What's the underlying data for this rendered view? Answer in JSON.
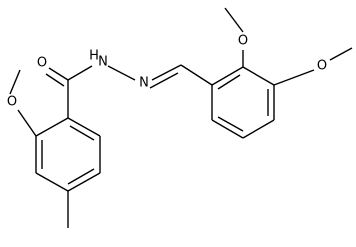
{
  "atoms": [
    {
      "label": "O"
    },
    {
      "label": "H"
    },
    {
      "label": "N"
    },
    {
      "label": "N"
    },
    {
      "label": "O"
    },
    {
      "label": "O"
    },
    {
      "label": "O"
    }
  ]
}
